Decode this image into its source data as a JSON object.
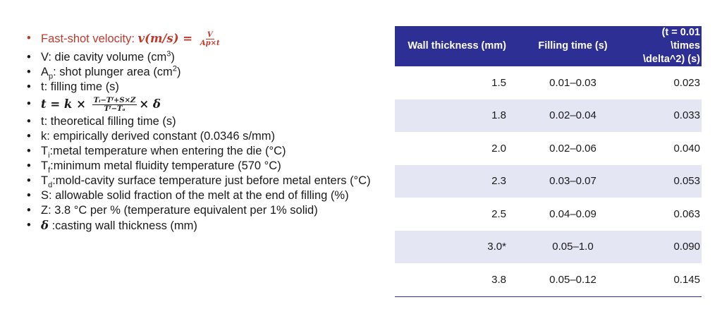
{
  "left": {
    "shot_velocity_label": "Fast-shot velocity: ",
    "shot_velocity_formula_lhs": "v(m/s) = ",
    "shot_velocity_num": "V",
    "shot_velocity_den": "Ap×t",
    "v_def": "V: die cavity volume (cm",
    "v_def_sup": "3",
    "v_def_end": ")",
    "ap_def_a": "A",
    "ap_def_sub": "p",
    "ap_def_b": ": shot plunger area (cm",
    "ap_def_sup": "2",
    "ap_def_end": ")",
    "t_def": "t: filling time (s)",
    "eq_lhs": "t = k × ",
    "eq_num": "Tᵢ−Tᶠ+S×Z",
    "eq_den": "Tᶠ−Tₐ",
    "eq_rhs": "× δ",
    "t_theo": "t: theoretical filling time (s)",
    "k_def": "k: empirically derived constant (0.0346 s/mm)",
    "ti_a": "T",
    "ti_sub": "i",
    "ti_b": ":metal temperature when entering the die (°C)",
    "tf_a": "T",
    "tf_sub": "f",
    "tf_b": ":minimum metal fluidity temperature (570 °C)",
    "td_a": "T",
    "td_sub": "d",
    "td_b": ":mold-cavity surface temperature just before metal enters (°C)",
    "s_def": "S: allowable solid fraction of the melt at the end of filling (%)",
    "z_def": "Z: 3.8 °C per % (temperature equivalent per 1% solid)",
    "delta_sym": "δ",
    "delta_def": " :casting wall thickness (mm)",
    "bullet": "•"
  },
  "table": {
    "headers": [
      "Wall thickness (mm)",
      "Filling time (s)",
      "(t = 0.01 \\times \\delta^2) (s)"
    ],
    "rows": [
      [
        "1.5",
        "0.01–0.03",
        "0.023"
      ],
      [
        "1.8",
        "0.02–0.04",
        "0.033"
      ],
      [
        "2.0",
        "0.02–0.06",
        "0.040"
      ],
      [
        "2.3",
        "0.03–0.07",
        "0.053"
      ],
      [
        "2.5",
        "0.04–0.09",
        "0.063"
      ],
      [
        "3.0*",
        "0.05–1.0",
        "0.090"
      ],
      [
        "3.8",
        "0.05–0.12",
        "0.145"
      ]
    ]
  },
  "colors": {
    "header_bg": "#2e2f94",
    "stripe": "#e5e6f3",
    "accent_red": "#c0392b"
  }
}
